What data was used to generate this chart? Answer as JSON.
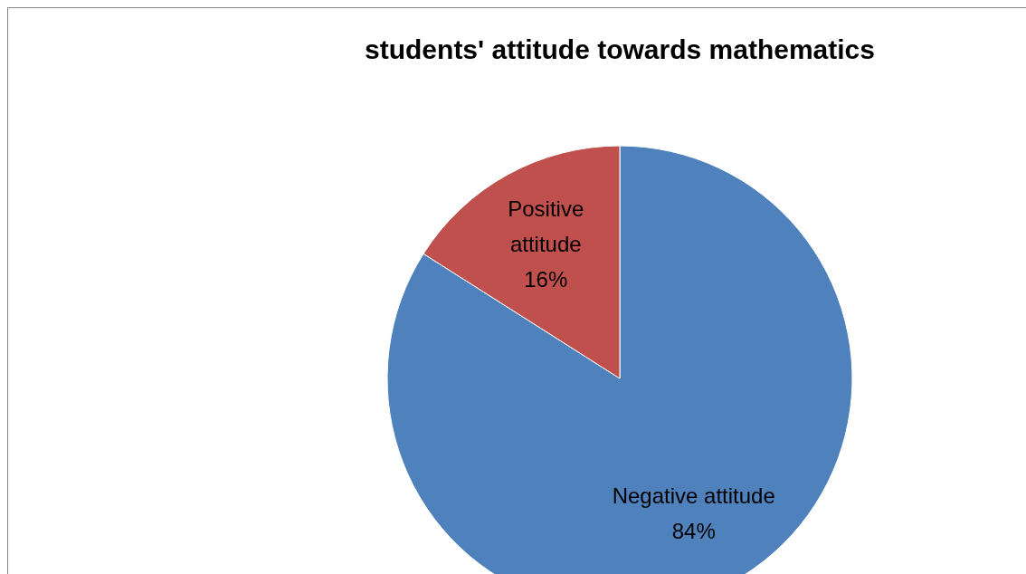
{
  "chart_data": {
    "type": "pie",
    "title": "students' attitude towards mathematics",
    "categories": [
      "Negative attitude",
      "Positive attitude"
    ],
    "values": [
      84,
      16
    ],
    "colors": [
      "#4f81bd",
      "#c0504d"
    ],
    "value_labels": [
      "84%",
      "16%"
    ],
    "legend": false
  }
}
